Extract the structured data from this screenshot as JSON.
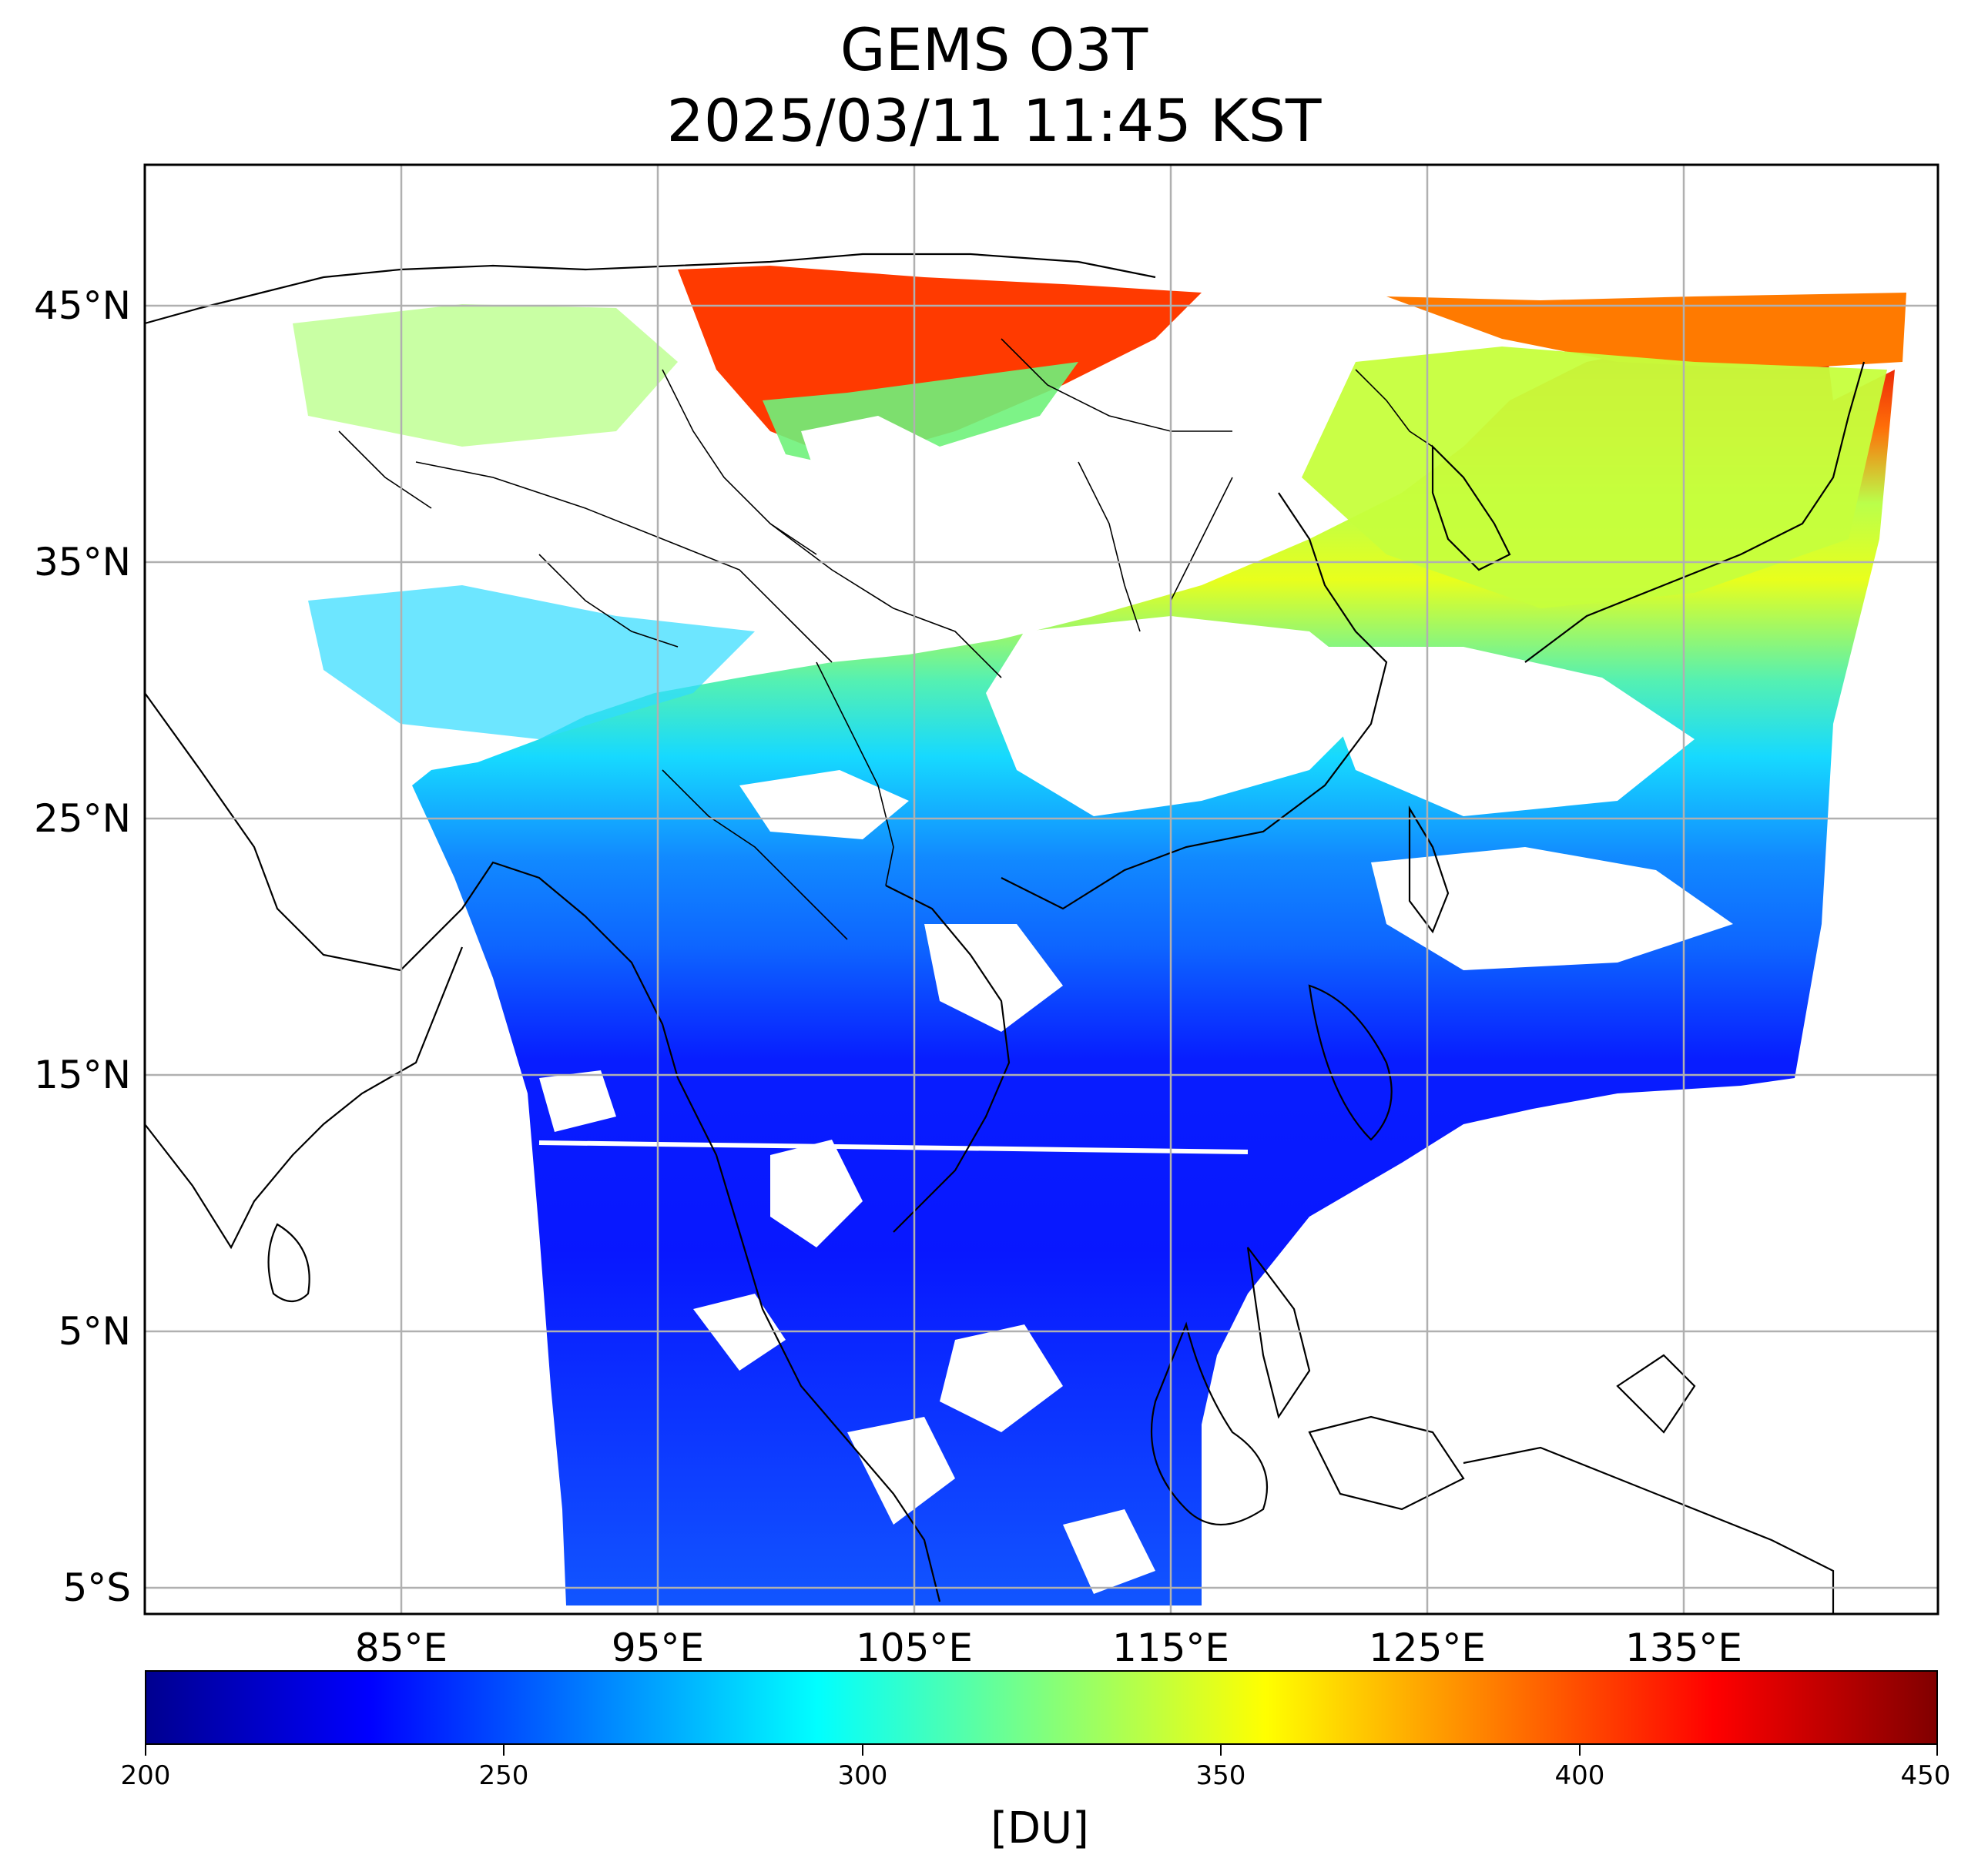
{
  "title": "GEMS O3T",
  "subtitle": "2025/03/11 11:45 KST",
  "map": {
    "product": "GEMS O3T",
    "extent_lon": [
      75,
      145
    ],
    "extent_lat": [
      -6,
      50.5
    ],
    "lat_grid": [
      45,
      35,
      25,
      15,
      5,
      -5
    ],
    "lon_grid": [
      85,
      95,
      105,
      115,
      125,
      135
    ],
    "lat_labels": [
      "45°N",
      "35°N",
      "25°N",
      "15°N",
      "5°N",
      "5°S"
    ],
    "lon_labels": [
      "85°E",
      "95°E",
      "105°E",
      "115°E",
      "125°E",
      "135°E"
    ],
    "gridlines": true,
    "features": [
      "country borders",
      "province borders",
      "coastlines"
    ],
    "cloud_masked_areas": "white"
  },
  "colorbar": {
    "min": 200,
    "max": 450,
    "tick_values": [
      200,
      250,
      300,
      350,
      400,
      450
    ],
    "tick_labels": [
      "200",
      "250",
      "300",
      "350",
      "400",
      "450"
    ],
    "unit": "[DU]",
    "colormap": "jet",
    "colors": [
      "#00008f",
      "#0000ff",
      "#00ffff",
      "#ffff00",
      "#ff0000",
      "#800000"
    ]
  }
}
